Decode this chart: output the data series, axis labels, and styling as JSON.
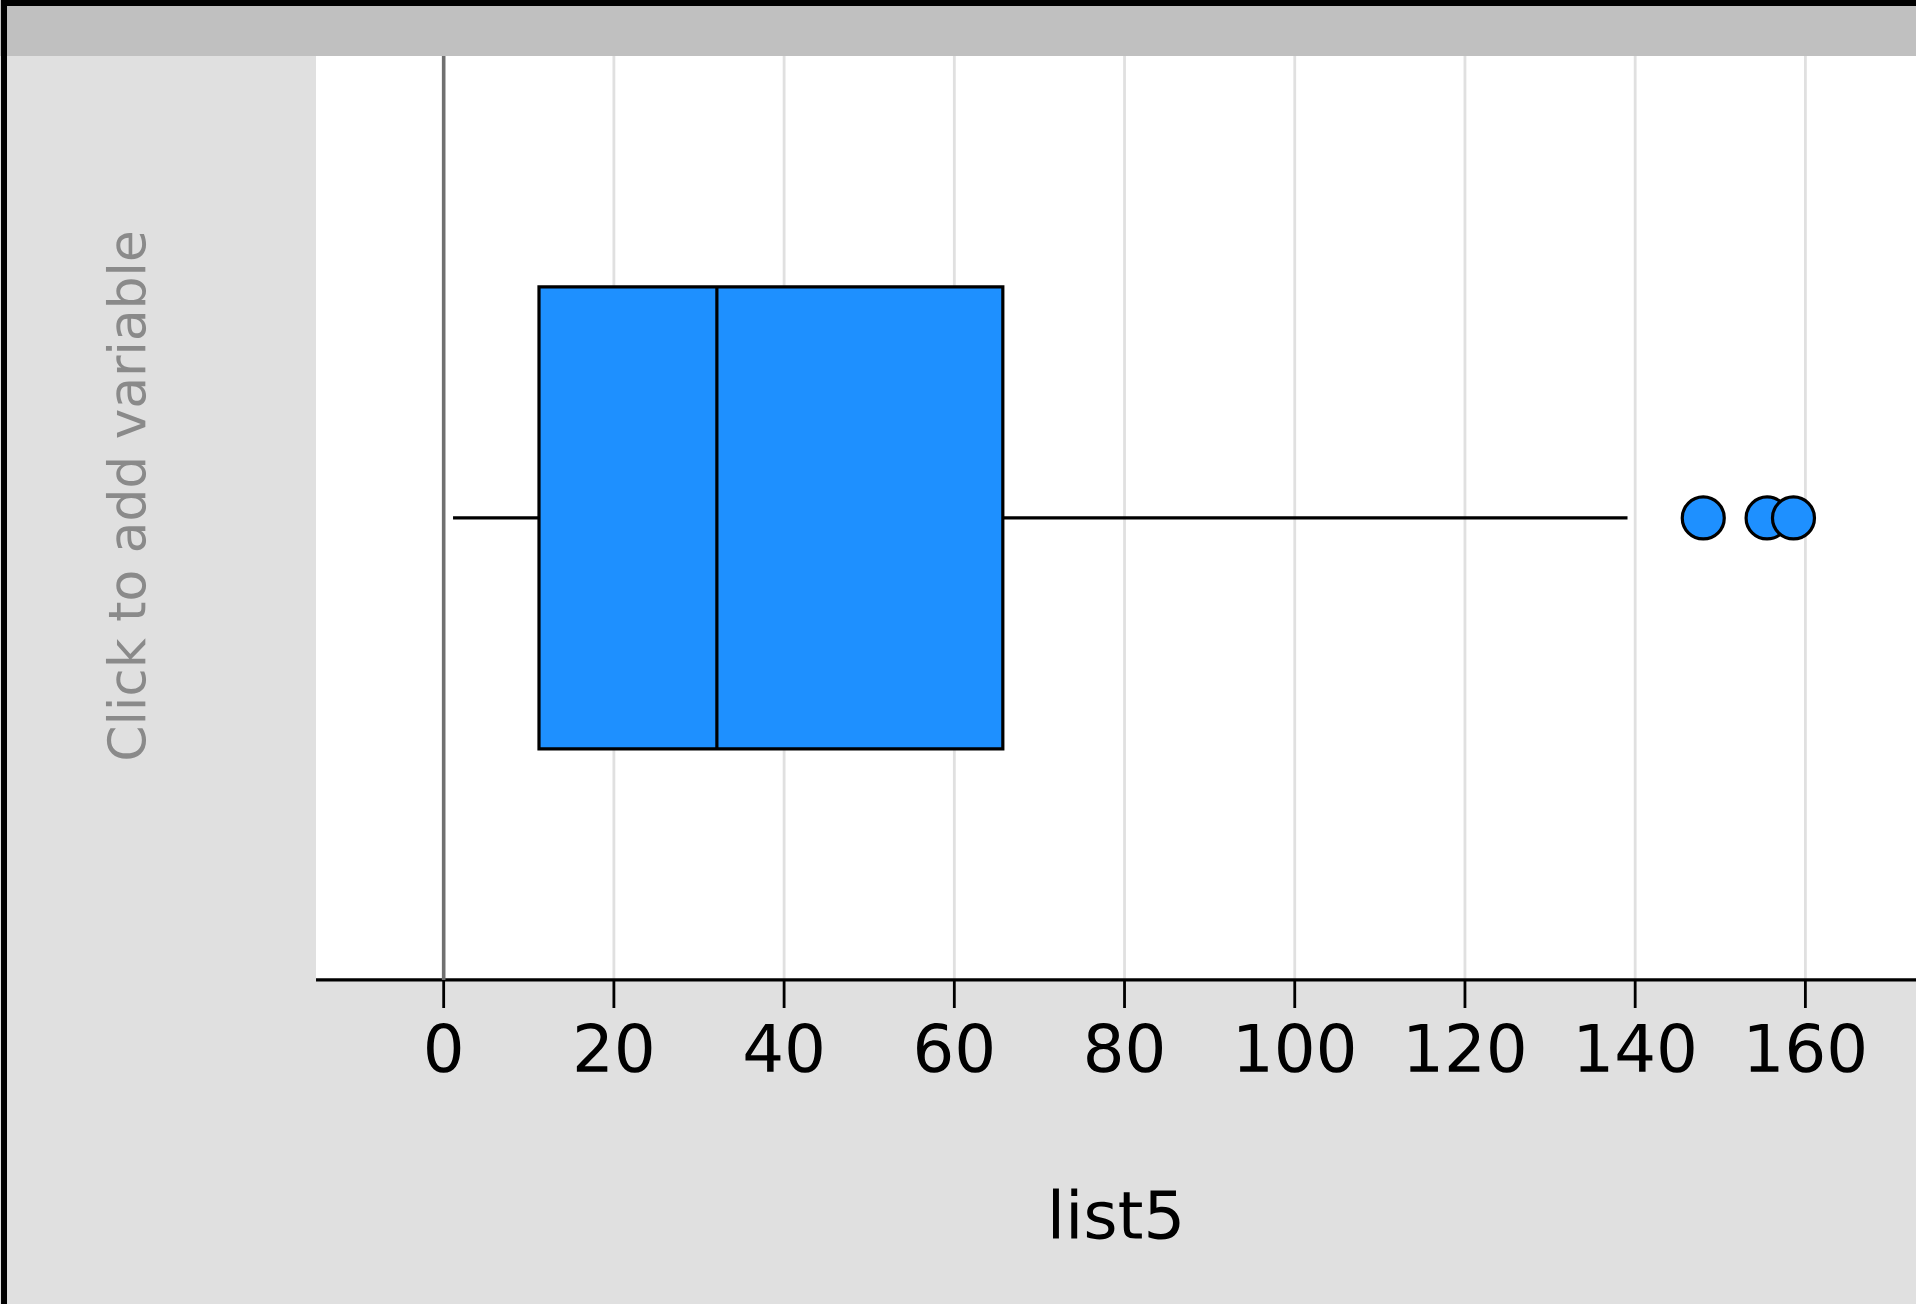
{
  "chart_data": {
    "type": "box",
    "orientation": "horizontal",
    "categories": [
      null
    ],
    "boxes": [
      {
        "low": 1.1,
        "q1": 11.2,
        "median": 32.1,
        "q3": 65.7,
        "high": 139.1,
        "outliers": [
          148,
          155.5,
          158.6
        ]
      }
    ],
    "color": "#1e90ff",
    "marker": "circle",
    "xlabel": "list5",
    "ylabel": "Click to add variable",
    "xlim": [
      -15,
      173
    ],
    "xticks": [
      0,
      20,
      40,
      60,
      80,
      100,
      120,
      140,
      160
    ],
    "grid": "x",
    "ref_lines": [
      {
        "axis": "x",
        "value": 0,
        "color": "#707070"
      }
    ]
  }
}
